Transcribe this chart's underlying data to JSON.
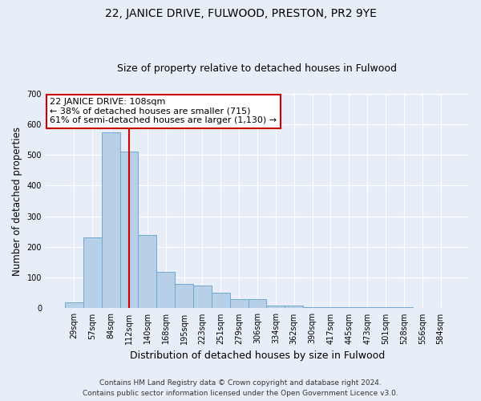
{
  "title": "22, JANICE DRIVE, FULWOOD, PRESTON, PR2 9YE",
  "subtitle": "Size of property relative to detached houses in Fulwood",
  "xlabel": "Distribution of detached houses by size in Fulwood",
  "ylabel": "Number of detached properties",
  "bin_labels": [
    "29sqm",
    "57sqm",
    "84sqm",
    "112sqm",
    "140sqm",
    "168sqm",
    "195sqm",
    "223sqm",
    "251sqm",
    "279sqm",
    "306sqm",
    "334sqm",
    "362sqm",
    "390sqm",
    "417sqm",
    "445sqm",
    "473sqm",
    "501sqm",
    "528sqm",
    "556sqm",
    "584sqm"
  ],
  "bar_values": [
    20,
    230,
    575,
    510,
    240,
    120,
    80,
    75,
    50,
    30,
    30,
    10,
    10,
    5,
    5,
    5,
    5,
    3,
    3,
    2,
    2
  ],
  "bar_color": "#b8cfe8",
  "bar_edge_color": "#6fa8d0",
  "vline_color": "#cc0000",
  "vline_x": 3.0,
  "annotation_text": "22 JANICE DRIVE: 108sqm\n← 38% of detached houses are smaller (715)\n61% of semi-detached houses are larger (1,130) →",
  "annotation_box_color": "#ffffff",
  "annotation_box_edge": "#cc0000",
  "ylim": [
    0,
    700
  ],
  "yticks": [
    0,
    100,
    200,
    300,
    400,
    500,
    600,
    700
  ],
  "footer1": "Contains HM Land Registry data © Crown copyright and database right 2024.",
  "footer2": "Contains public sector information licensed under the Open Government Licence v3.0.",
  "bg_color": "#e8eef8",
  "plot_bg_color": "#e8eef8"
}
